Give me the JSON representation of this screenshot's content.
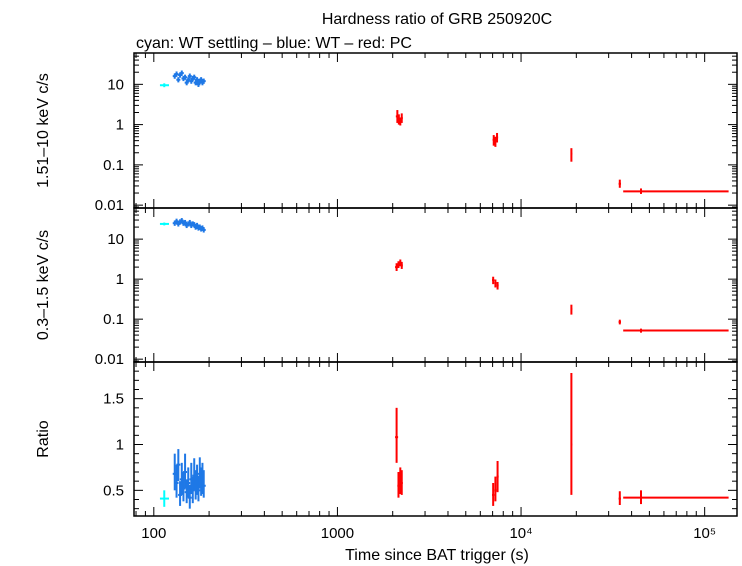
{
  "chart_data": {
    "type": "scatter",
    "title": "Hardness ratio of GRB 250920C",
    "subtitle": "cyan: WT settling – blue: WT – red: PC",
    "xlabel": "Time since BAT trigger (s)",
    "xscale": "log",
    "xlim": [
      78,
      150000
    ],
    "xticks": [
      {
        "value": 100,
        "label": "100"
      },
      {
        "value": 1000,
        "label": "1000"
      },
      {
        "value": 10000,
        "label": "10⁴"
      },
      {
        "value": 100000,
        "label": "10⁵"
      }
    ],
    "colors": {
      "wt_settling": "#00ffff",
      "wt": "#1f78e6",
      "pc": "#ff0000"
    },
    "panels": [
      {
        "id": "hard",
        "ylabel": "1.51–10 keV c/s",
        "yscale": "log",
        "ylim": [
          0.0085,
          60
        ],
        "yticks": [
          {
            "value": 0.01,
            "label": "0.01"
          },
          {
            "value": 0.1,
            "label": "0.1"
          },
          {
            "value": 1,
            "label": "1"
          },
          {
            "value": 10,
            "label": "10"
          }
        ],
        "series": [
          {
            "mode": "wt_settling",
            "points": [
              [
                114,
                9.5,
                108,
                121,
                8.5,
                10.6
              ]
            ]
          },
          {
            "mode": "wt",
            "points": [
              [
                130,
                16
              ],
              [
                133,
                18
              ],
              [
                136,
                13
              ],
              [
                139,
                17
              ],
              [
                142,
                19
              ],
              [
                145,
                14
              ],
              [
                148,
                15
              ],
              [
                151,
                11
              ],
              [
                154,
                13
              ],
              [
                157,
                16
              ],
              [
                160,
                12
              ],
              [
                163,
                14
              ],
              [
                166,
                15
              ],
              [
                169,
                11
              ],
              [
                172,
                13
              ],
              [
                175,
                10
              ],
              [
                178,
                12
              ],
              [
                181,
                13
              ],
              [
                184,
                11
              ],
              [
                187,
                12
              ]
            ]
          },
          {
            "mode": "pc",
            "points": [
              [
                2120,
                1.6,
                2080,
                2160,
                1.1,
                2.3
              ],
              [
                2160,
                1.35,
                2130,
                2190,
                1.0,
                1.8
              ],
              [
                2200,
                1.2,
                2170,
                2230,
                0.95,
                1.5
              ],
              [
                2240,
                1.45,
                2210,
                2270,
                1.1,
                1.9
              ],
              [
                7100,
                0.42,
                7000,
                7200,
                0.3,
                0.55
              ],
              [
                7250,
                0.38,
                7150,
                7350,
                0.28,
                0.5
              ],
              [
                7400,
                0.48,
                7300,
                7500,
                0.36,
                0.62
              ],
              [
                18800,
                0.19,
                18600,
                19000,
                0.12,
                0.26
              ],
              [
                34500,
                0.034,
                34000,
                35000,
                0.027,
                0.043
              ],
              [
                45000,
                0.022,
                36000,
                135000,
                0.019,
                0.026
              ]
            ]
          }
        ]
      },
      {
        "id": "soft",
        "ylabel": "0.3–1.5 keV c/s",
        "yscale": "log",
        "ylim": [
          0.0085,
          60
        ],
        "yticks": [
          {
            "value": 0.01,
            "label": "0.01"
          },
          {
            "value": 0.1,
            "label": "0.1"
          },
          {
            "value": 1,
            "label": "1"
          },
          {
            "value": 10,
            "label": "10"
          }
        ],
        "series": [
          {
            "mode": "wt_settling",
            "points": [
              [
                114,
                24,
                108,
                121,
                22,
                26
              ]
            ]
          },
          {
            "mode": "wt",
            "points": [
              [
                130,
                25
              ],
              [
                133,
                28
              ],
              [
                136,
                24
              ],
              [
                139,
                27
              ],
              [
                142,
                29
              ],
              [
                145,
                25
              ],
              [
                148,
                26
              ],
              [
                151,
                22
              ],
              [
                154,
                24
              ],
              [
                157,
                26
              ],
              [
                160,
                22
              ],
              [
                163,
                24
              ],
              [
                166,
                23
              ],
              [
                169,
                20
              ],
              [
                172,
                22
              ],
              [
                175,
                19
              ],
              [
                178,
                20
              ],
              [
                181,
                18
              ],
              [
                184,
                19
              ],
              [
                187,
                17
              ]
            ]
          },
          {
            "mode": "pc",
            "points": [
              [
                2100,
                2.0,
                2060,
                2140,
                1.6,
                2.5
              ],
              [
                2150,
                2.3,
                2120,
                2180,
                1.9,
                2.8
              ],
              [
                2200,
                2.6,
                2170,
                2230,
                2.1,
                3.1
              ],
              [
                2240,
                2.2,
                2210,
                2270,
                1.8,
                2.7
              ],
              [
                7050,
                0.95,
                6950,
                7150,
                0.75,
                1.15
              ],
              [
                7250,
                0.8,
                7150,
                7350,
                0.62,
                0.98
              ],
              [
                7450,
                0.7,
                7350,
                7550,
                0.55,
                0.85
              ],
              [
                18800,
                0.18,
                18600,
                19000,
                0.13,
                0.23
              ],
              [
                34500,
                0.085,
                34000,
                35000,
                0.074,
                0.097
              ],
              [
                45000,
                0.052,
                36000,
                135000,
                0.046,
                0.058
              ]
            ]
          }
        ]
      },
      {
        "id": "ratio",
        "ylabel": "Ratio",
        "yscale": "linear",
        "ylim": [
          0.22,
          1.9
        ],
        "yticks": [
          {
            "value": 0.5,
            "label": "0.5"
          },
          {
            "value": 1,
            "label": "1"
          },
          {
            "value": 1.5,
            "label": "1.5"
          }
        ],
        "series": [
          {
            "mode": "wt_settling",
            "points": [
              [
                114,
                0.41,
                108,
                121,
                0.32,
                0.5
              ]
            ]
          },
          {
            "mode": "wt",
            "points": [
              [
                130,
                0.68,
                0.5,
                0.9
              ],
              [
                133,
                0.58,
                0.42,
                0.78
              ],
              [
                136,
                0.78,
                0.6,
                0.95
              ],
              [
                139,
                0.45,
                0.33,
                0.6
              ],
              [
                142,
                0.62,
                0.45,
                0.8
              ],
              [
                145,
                0.52,
                0.38,
                0.7
              ],
              [
                148,
                0.7,
                0.52,
                0.9
              ],
              [
                151,
                0.48,
                0.36,
                0.62
              ],
              [
                154,
                0.58,
                0.42,
                0.75
              ],
              [
                157,
                0.42,
                0.3,
                0.56
              ],
              [
                160,
                0.62,
                0.46,
                0.8
              ],
              [
                163,
                0.5,
                0.36,
                0.65
              ],
              [
                166,
                0.66,
                0.5,
                0.85
              ],
              [
                169,
                0.55,
                0.4,
                0.72
              ],
              [
                172,
                0.6,
                0.45,
                0.78
              ],
              [
                175,
                0.5,
                0.38,
                0.66
              ],
              [
                178,
                0.68,
                0.52,
                0.86
              ],
              [
                181,
                0.58,
                0.44,
                0.75
              ],
              [
                184,
                0.62,
                0.46,
                0.8
              ],
              [
                187,
                0.55,
                0.42,
                0.72
              ]
            ]
          },
          {
            "mode": "pc",
            "points": [
              [
                2100,
                1.08,
                2060,
                2140,
                0.8,
                1.4
              ],
              [
                2150,
                0.55,
                2120,
                2180,
                0.42,
                0.7
              ],
              [
                2200,
                0.6,
                2170,
                2230,
                0.46,
                0.75
              ],
              [
                2240,
                0.58,
                2210,
                2270,
                0.45,
                0.72
              ],
              [
                7050,
                0.45,
                6950,
                7150,
                0.33,
                0.58
              ],
              [
                7250,
                0.5,
                7150,
                7350,
                0.38,
                0.65
              ],
              [
                7450,
                0.65,
                7350,
                7550,
                0.48,
                0.82
              ],
              [
                18800,
                1.0,
                18600,
                19000,
                0.45,
                1.78
              ],
              [
                34500,
                0.41,
                34000,
                35000,
                0.34,
                0.49
              ],
              [
                45000,
                0.42,
                36000,
                135000,
                0.35,
                0.5
              ]
            ]
          }
        ]
      }
    ]
  }
}
